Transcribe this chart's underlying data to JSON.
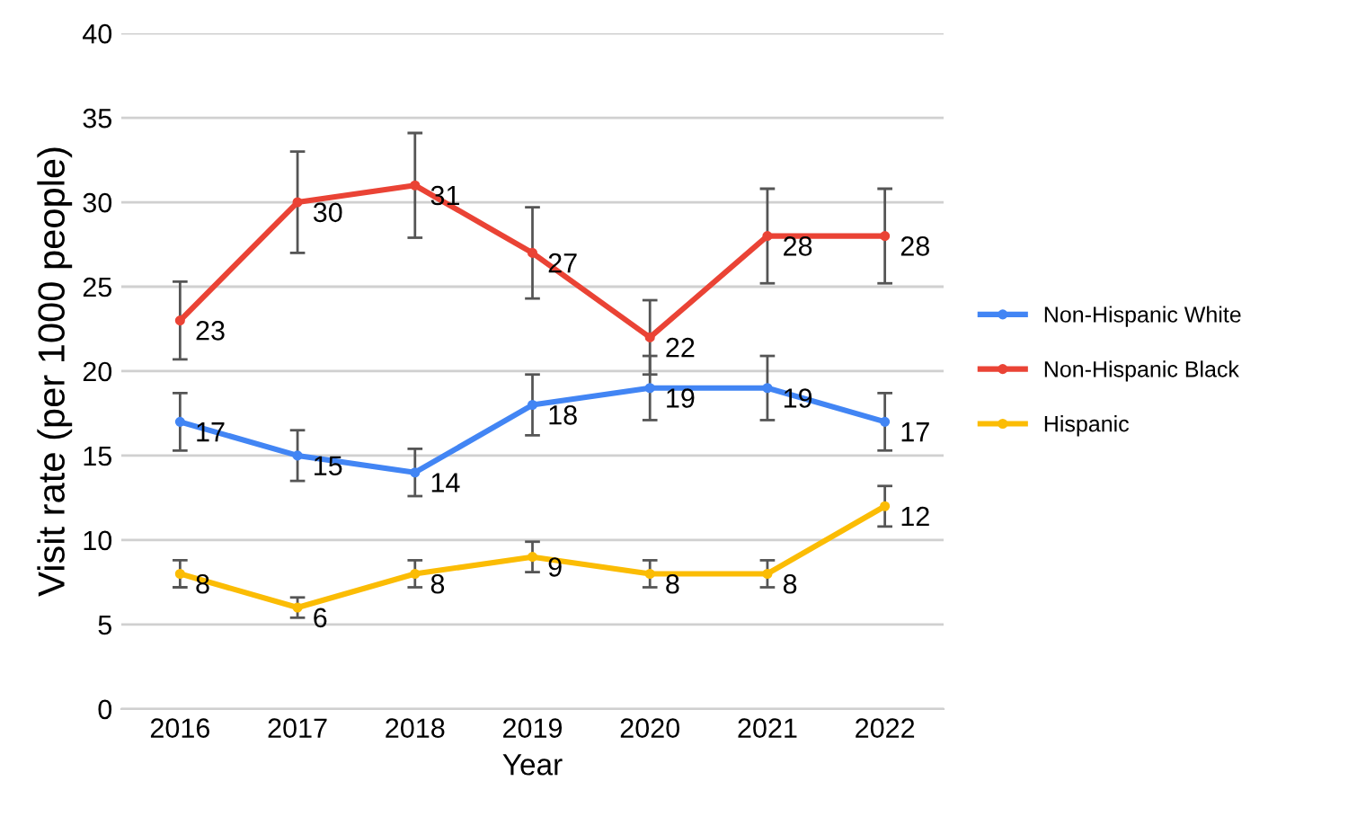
{
  "chart_data": {
    "type": "line",
    "xlabel": "Year",
    "ylabel": "Visit rate (per 1000 people)",
    "categories": [
      "2016",
      "2017",
      "2018",
      "2019",
      "2020",
      "2021",
      "2022"
    ],
    "series": [
      {
        "name": "Non-Hispanic White",
        "color": "#4285f4",
        "values": [
          17,
          15,
          14,
          18,
          19,
          19,
          17
        ],
        "errors": [
          1.7,
          1.5,
          1.4,
          1.8,
          1.9,
          1.9,
          1.7
        ]
      },
      {
        "name": "Non-Hispanic Black",
        "color": "#ea4335",
        "values": [
          23,
          30,
          31,
          27,
          22,
          28,
          28
        ],
        "errors": [
          2.3,
          3,
          3.1,
          2.7,
          2.2,
          2.8,
          2.8
        ]
      },
      {
        "name": "Hispanic",
        "color": "#fbbc04",
        "values": [
          8,
          6,
          8,
          9,
          8,
          8,
          12
        ],
        "errors": [
          0.8,
          0.6,
          0.8,
          0.9,
          0.8,
          0.8,
          1.2
        ]
      }
    ],
    "ylim": [
      0,
      40
    ],
    "yticks": [
      0,
      5,
      10,
      15,
      20,
      25,
      30,
      35,
      40
    ],
    "grid": "y",
    "legend": "right",
    "marker": "circle",
    "line_style": "solid",
    "data_labels": true
  }
}
